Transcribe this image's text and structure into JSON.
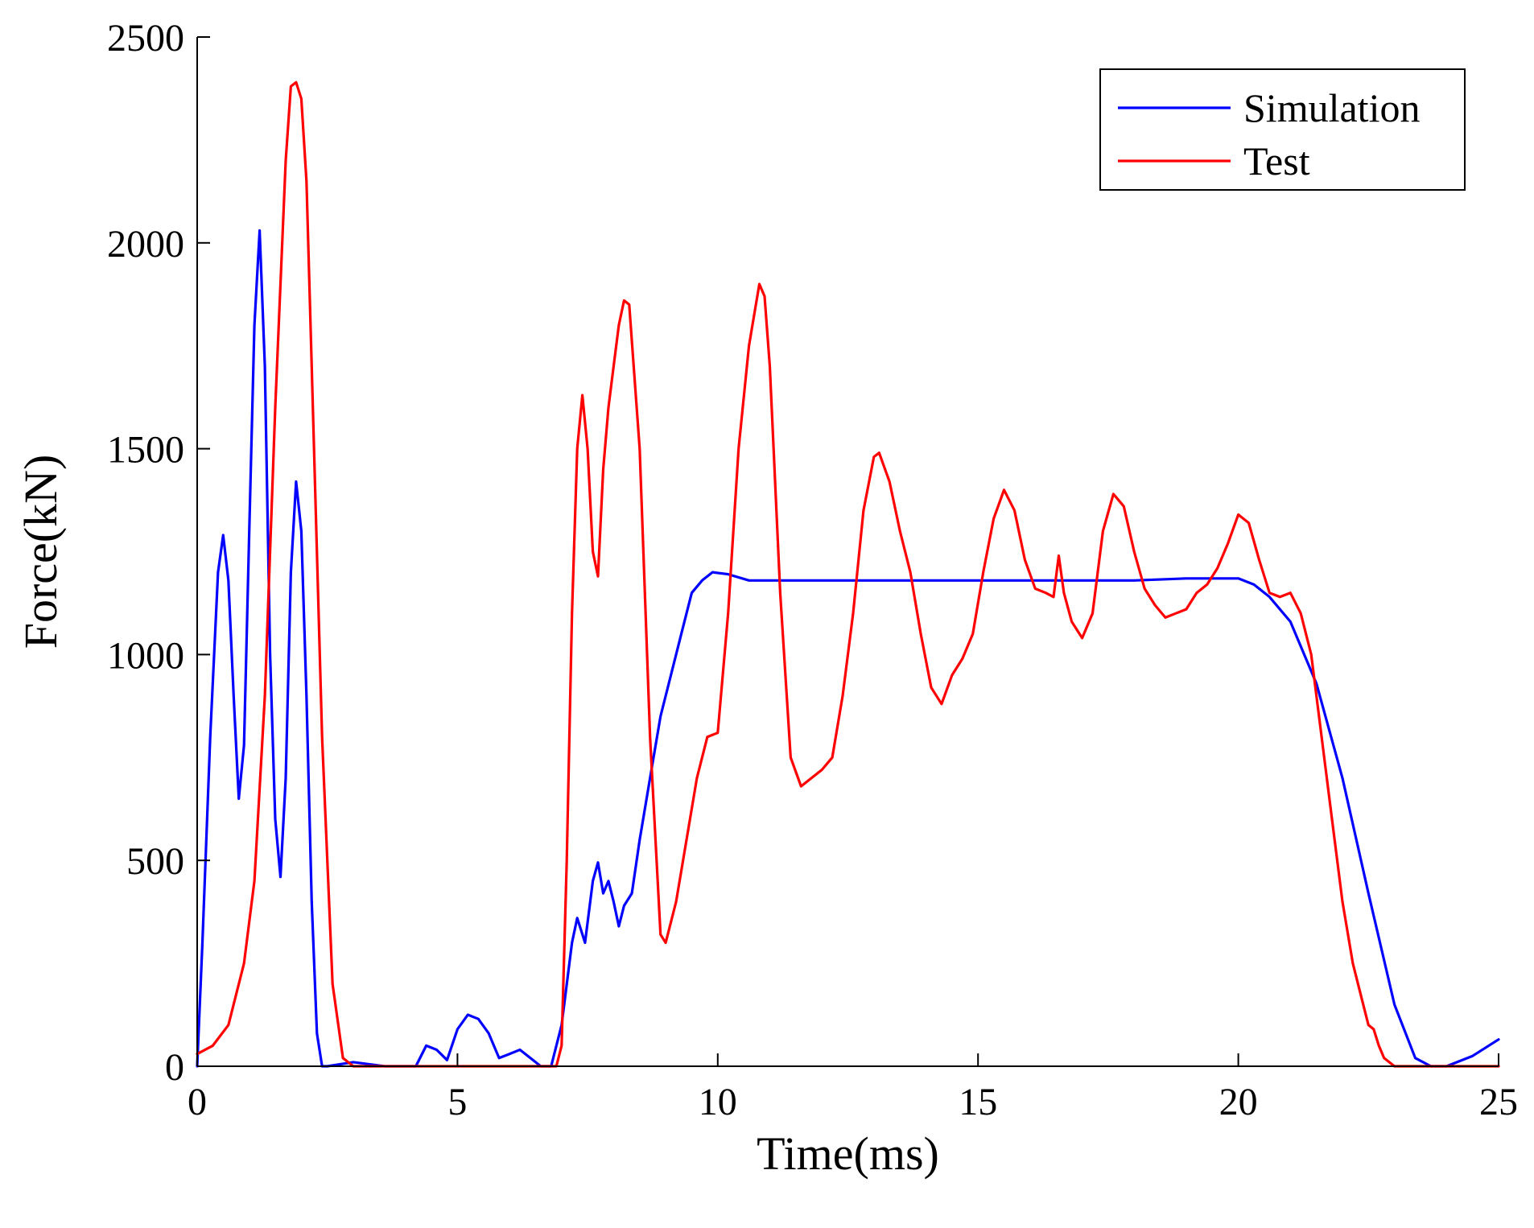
{
  "chart_data": {
    "type": "line",
    "title": "",
    "xlabel": "Time(ms)",
    "ylabel": "Force(kN)",
    "xlim": [
      0,
      25
    ],
    "ylim": [
      0,
      2500
    ],
    "xticks": [
      0,
      5,
      10,
      15,
      20,
      25
    ],
    "yticks": [
      0,
      500,
      1000,
      1500,
      2000,
      2500
    ],
    "grid": false,
    "legend_position": "top-right",
    "series": [
      {
        "name": "Simulation",
        "color": "#0000ff",
        "x": [
          0,
          0.1,
          0.25,
          0.4,
          0.5,
          0.6,
          0.7,
          0.8,
          0.9,
          1.0,
          1.1,
          1.2,
          1.3,
          1.4,
          1.5,
          1.6,
          1.7,
          1.8,
          1.9,
          2.0,
          2.1,
          2.2,
          2.3,
          2.4,
          2.5,
          3.0,
          3.3,
          3.6,
          4.2,
          4.4,
          4.6,
          4.8,
          5.0,
          5.2,
          5.4,
          5.6,
          5.8,
          6.0,
          6.2,
          6.4,
          6.6,
          6.8,
          7.0,
          7.2,
          7.3,
          7.45,
          7.6,
          7.7,
          7.8,
          7.9,
          8.0,
          8.1,
          8.2,
          8.35,
          8.5,
          8.7,
          8.9,
          9.1,
          9.3,
          9.5,
          9.7,
          9.9,
          10.2,
          10.6,
          11.0,
          12.0,
          13.0,
          14.0,
          15.0,
          16.0,
          17.0,
          18.0,
          19.0,
          20.0,
          20.3,
          20.6,
          21.0,
          21.5,
          22.0,
          22.5,
          23.0,
          23.4,
          23.7,
          24.0,
          24.5,
          25.0
        ],
        "y": [
          0,
          300,
          800,
          1200,
          1290,
          1180,
          900,
          650,
          780,
          1300,
          1800,
          2030,
          1700,
          1000,
          600,
          460,
          700,
          1200,
          1420,
          1300,
          900,
          400,
          80,
          0,
          0,
          10,
          5,
          0,
          0,
          50,
          40,
          15,
          90,
          125,
          115,
          80,
          20,
          30,
          40,
          20,
          0,
          0,
          100,
          300,
          360,
          300,
          450,
          495,
          420,
          450,
          400,
          340,
          390,
          420,
          550,
          700,
          850,
          950,
          1050,
          1150,
          1180,
          1200,
          1195,
          1180,
          1180,
          1180,
          1180,
          1180,
          1180,
          1180,
          1180,
          1180,
          1185,
          1185,
          1170,
          1140,
          1080,
          930,
          700,
          420,
          150,
          20,
          0,
          0,
          25,
          65
        ]
      },
      {
        "name": "Test",
        "color": "#ff0000",
        "x": [
          0,
          0.3,
          0.6,
          0.9,
          1.1,
          1.3,
          1.5,
          1.7,
          1.8,
          1.9,
          2.0,
          2.1,
          2.2,
          2.4,
          2.6,
          2.8,
          3.0,
          4.0,
          6.0,
          6.9,
          7.0,
          7.1,
          7.2,
          7.3,
          7.4,
          7.5,
          7.6,
          7.7,
          7.8,
          7.9,
          8.0,
          8.1,
          8.2,
          8.3,
          8.5,
          8.7,
          8.9,
          9.0,
          9.2,
          9.4,
          9.6,
          9.8,
          10.0,
          10.2,
          10.4,
          10.6,
          10.8,
          10.9,
          11.0,
          11.2,
          11.4,
          11.6,
          11.8,
          12.0,
          12.2,
          12.4,
          12.6,
          12.8,
          13.0,
          13.1,
          13.3,
          13.5,
          13.7,
          13.9,
          14.1,
          14.3,
          14.5,
          14.7,
          14.9,
          15.1,
          15.3,
          15.5,
          15.7,
          15.9,
          16.1,
          16.3,
          16.45,
          16.55,
          16.65,
          16.8,
          17.0,
          17.2,
          17.4,
          17.6,
          17.8,
          18.0,
          18.2,
          18.4,
          18.6,
          18.8,
          19.0,
          19.2,
          19.4,
          19.6,
          19.8,
          20.0,
          20.2,
          20.4,
          20.6,
          20.8,
          21.0,
          21.2,
          21.4,
          21.6,
          21.8,
          22.0,
          22.2,
          22.4,
          22.5,
          22.6,
          22.7,
          22.8,
          23.0,
          23.2,
          23.5,
          24.0,
          25.0
        ],
        "y": [
          30,
          50,
          100,
          250,
          450,
          900,
          1600,
          2200,
          2380,
          2390,
          2350,
          2150,
          1700,
          800,
          200,
          20,
          0,
          0,
          0,
          0,
          50,
          500,
          1100,
          1500,
          1630,
          1500,
          1250,
          1190,
          1450,
          1600,
          1700,
          1800,
          1860,
          1850,
          1500,
          800,
          320,
          300,
          400,
          550,
          700,
          800,
          810,
          1100,
          1500,
          1750,
          1900,
          1870,
          1700,
          1150,
          750,
          680,
          700,
          720,
          750,
          900,
          1100,
          1350,
          1480,
          1490,
          1420,
          1300,
          1200,
          1050,
          920,
          880,
          950,
          990,
          1050,
          1200,
          1330,
          1400,
          1350,
          1230,
          1160,
          1150,
          1140,
          1240,
          1150,
          1080,
          1040,
          1100,
          1300,
          1390,
          1360,
          1250,
          1160,
          1120,
          1090,
          1100,
          1110,
          1150,
          1170,
          1210,
          1270,
          1340,
          1320,
          1230,
          1150,
          1140,
          1150,
          1100,
          1000,
          800,
          600,
          400,
          250,
          150,
          100,
          90,
          50,
          20,
          0,
          0,
          0,
          0,
          0
        ]
      }
    ]
  }
}
